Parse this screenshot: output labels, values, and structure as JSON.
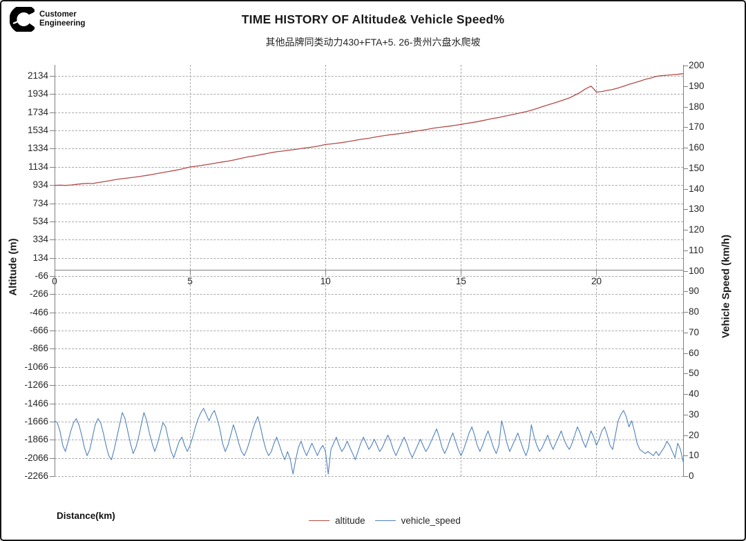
{
  "logo": {
    "brand": "Cummins",
    "line1": "Customer",
    "line2": "Engineering"
  },
  "chart_data": {
    "type": "line",
    "title": "TIME HISTORY OF Altitude& Vehicle Speed%",
    "subtitle": "其他品牌同类动力430+FTA+5. 26-贵州六盘水爬坡",
    "xlabel": "Distance(km)",
    "ylabel_left": "Altitude (m)",
    "ylabel_right": "Vehicle Speed (km/h)",
    "grid": true,
    "legend_position": "bottom",
    "x_axis": {
      "min": 0,
      "max": 23.2,
      "ticks": [
        0,
        5,
        10,
        15,
        20
      ]
    },
    "left_axis": {
      "min": -2266,
      "max": 2255,
      "ticks": [
        2134,
        1934,
        1734,
        1534,
        1334,
        1134,
        934,
        734,
        534,
        334,
        134,
        -66,
        -266,
        -466,
        -666,
        -866,
        -1066,
        -1266,
        -1466,
        -1666,
        -1866,
        -2066,
        -2266
      ]
    },
    "right_axis": {
      "min": 0,
      "max": 200,
      "ticks": [
        200,
        190,
        180,
        170,
        160,
        150,
        140,
        130,
        120,
        110,
        100,
        90,
        80,
        70,
        60,
        50,
        40,
        30,
        20,
        10,
        0
      ]
    },
    "series": [
      {
        "name": "altitude",
        "axis": "left",
        "color": "#b34a46",
        "points": [
          [
            0,
            930
          ],
          [
            0.2,
            933
          ],
          [
            0.4,
            930
          ],
          [
            0.6,
            934
          ],
          [
            0.8,
            941
          ],
          [
            1.0,
            948
          ],
          [
            1.2,
            953
          ],
          [
            1.4,
            950
          ],
          [
            1.6,
            961
          ],
          [
            1.8,
            970
          ],
          [
            2.0,
            980
          ],
          [
            2.2,
            991
          ],
          [
            2.4,
            1000
          ],
          [
            2.6,
            1007
          ],
          [
            2.8,
            1015
          ],
          [
            3.0,
            1022
          ],
          [
            3.2,
            1031
          ],
          [
            3.4,
            1040
          ],
          [
            3.6,
            1050
          ],
          [
            3.8,
            1061
          ],
          [
            4.0,
            1072
          ],
          [
            4.2,
            1082
          ],
          [
            4.4,
            1093
          ],
          [
            4.6,
            1104
          ],
          [
            4.8,
            1118
          ],
          [
            5.0,
            1132
          ],
          [
            5.2,
            1140
          ],
          [
            5.4,
            1148
          ],
          [
            5.6,
            1158
          ],
          [
            5.8,
            1167
          ],
          [
            6.0,
            1178
          ],
          [
            6.2,
            1188
          ],
          [
            6.4,
            1197
          ],
          [
            6.6,
            1208
          ],
          [
            6.8,
            1221
          ],
          [
            7.0,
            1235
          ],
          [
            7.2,
            1247
          ],
          [
            7.4,
            1255
          ],
          [
            7.6,
            1267
          ],
          [
            7.8,
            1278
          ],
          [
            8.0,
            1290
          ],
          [
            8.2,
            1300
          ],
          [
            8.4,
            1307
          ],
          [
            8.6,
            1315
          ],
          [
            8.8,
            1322
          ],
          [
            9.0,
            1330
          ],
          [
            9.2,
            1340
          ],
          [
            9.4,
            1347
          ],
          [
            9.6,
            1355
          ],
          [
            9.8,
            1367
          ],
          [
            10.0,
            1380
          ],
          [
            10.2,
            1386
          ],
          [
            10.4,
            1393
          ],
          [
            10.6,
            1400
          ],
          [
            10.8,
            1410
          ],
          [
            11.0,
            1420
          ],
          [
            11.2,
            1431
          ],
          [
            11.4,
            1440
          ],
          [
            11.6,
            1448
          ],
          [
            11.8,
            1459
          ],
          [
            12.0,
            1470
          ],
          [
            12.2,
            1478
          ],
          [
            12.4,
            1487
          ],
          [
            12.6,
            1494
          ],
          [
            12.8,
            1502
          ],
          [
            13.0,
            1510
          ],
          [
            13.2,
            1521
          ],
          [
            13.4,
            1530
          ],
          [
            13.6,
            1538
          ],
          [
            13.8,
            1549
          ],
          [
            14.0,
            1560
          ],
          [
            14.2,
            1568
          ],
          [
            14.4,
            1575
          ],
          [
            14.6,
            1582
          ],
          [
            14.8,
            1591
          ],
          [
            15.0,
            1600
          ],
          [
            15.2,
            1611
          ],
          [
            15.4,
            1620
          ],
          [
            15.6,
            1631
          ],
          [
            15.8,
            1642
          ],
          [
            16.0,
            1655
          ],
          [
            16.2,
            1667
          ],
          [
            16.4,
            1676
          ],
          [
            16.6,
            1690
          ],
          [
            16.8,
            1702
          ],
          [
            17.0,
            1715
          ],
          [
            17.2,
            1728
          ],
          [
            17.4,
            1741
          ],
          [
            17.6,
            1756
          ],
          [
            17.8,
            1775
          ],
          [
            18.0,
            1795
          ],
          [
            18.2,
            1814
          ],
          [
            18.4,
            1832
          ],
          [
            18.6,
            1851
          ],
          [
            18.8,
            1871
          ],
          [
            19.0,
            1892
          ],
          [
            19.2,
            1921
          ],
          [
            19.4,
            1952
          ],
          [
            19.6,
            1992
          ],
          [
            19.8,
            2021
          ],
          [
            19.9,
            1990
          ],
          [
            20.0,
            1955
          ],
          [
            20.2,
            1962
          ],
          [
            20.4,
            1974
          ],
          [
            20.6,
            1985
          ],
          [
            20.8,
            2001
          ],
          [
            21.0,
            2020
          ],
          [
            21.2,
            2041
          ],
          [
            21.4,
            2058
          ],
          [
            21.6,
            2076
          ],
          [
            21.8,
            2096
          ],
          [
            22.0,
            2110
          ],
          [
            22.2,
            2128
          ],
          [
            22.4,
            2136
          ],
          [
            22.6,
            2141
          ],
          [
            22.8,
            2146
          ],
          [
            23.0,
            2151
          ],
          [
            23.2,
            2158
          ]
        ]
      },
      {
        "name": "vehicle_speed",
        "axis": "right",
        "color": "#4f81bd",
        "x_start": 0,
        "x_step": 0.1,
        "values": [
          27,
          26,
          22,
          15,
          12,
          17,
          22,
          26,
          28,
          25,
          20,
          14,
          10,
          13,
          19,
          25,
          28,
          26,
          21,
          15,
          10,
          8,
          13,
          19,
          25,
          31,
          28,
          22,
          16,
          11,
          14,
          19,
          25,
          31,
          27,
          21,
          16,
          12,
          16,
          21,
          26,
          24,
          18,
          12,
          9,
          13,
          17,
          19,
          15,
          12,
          15,
          19,
          24,
          28,
          31,
          33,
          30,
          27,
          30,
          32,
          28,
          23,
          16,
          12,
          15,
          20,
          25,
          21,
          16,
          12,
          10,
          13,
          17,
          22,
          26,
          29,
          24,
          18,
          13,
          10,
          12,
          16,
          19,
          15,
          11,
          8,
          12,
          8,
          1,
          8,
          14,
          17,
          13,
          10,
          13,
          16,
          13,
          10,
          13,
          15,
          12,
          1,
          13,
          16,
          19,
          15,
          12,
          14,
          17,
          14,
          11,
          8,
          12,
          16,
          19,
          16,
          13,
          15,
          18,
          15,
          12,
          14,
          17,
          20,
          17,
          13,
          10,
          13,
          16,
          19,
          16,
          12,
          9,
          12,
          15,
          18,
          15,
          12,
          14,
          17,
          20,
          23,
          19,
          14,
          11,
          14,
          18,
          21,
          17,
          13,
          10,
          13,
          17,
          21,
          24,
          20,
          15,
          12,
          15,
          19,
          22,
          18,
          14,
          11,
          15,
          27,
          22,
          16,
          12,
          15,
          18,
          21,
          17,
          13,
          10,
          14,
          25,
          19,
          15,
          12,
          14,
          17,
          20,
          16,
          13,
          16,
          19,
          22,
          18,
          15,
          13,
          16,
          20,
          24,
          21,
          17,
          14,
          18,
          22,
          19,
          15,
          18,
          22,
          24,
          20,
          15,
          13,
          20,
          27,
          30,
          32,
          29,
          24,
          27,
          22,
          16,
          13,
          12,
          11,
          12,
          11,
          10,
          12,
          10,
          12,
          14,
          17,
          15,
          12,
          9,
          16,
          13,
          7
        ]
      }
    ]
  }
}
